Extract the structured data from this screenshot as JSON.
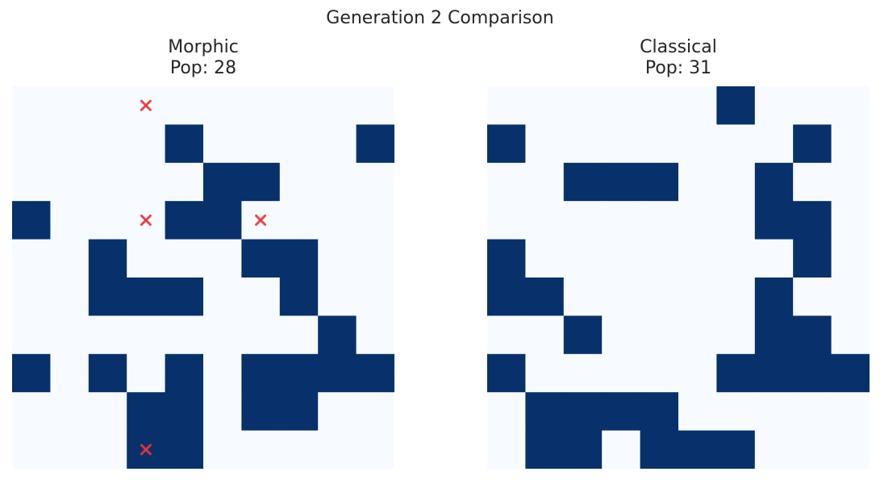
{
  "suptitle": "Generation 2 Comparison",
  "colors": {
    "alive": "#08306b",
    "dead": "#f7fbff",
    "marker": "#e8343c"
  },
  "chart_data": [
    {
      "type": "heatmap",
      "name": "Morphic",
      "title_line1": "Morphic",
      "title_line2": "Pop: 28",
      "grid": [
        [
          0,
          0,
          0,
          0,
          0,
          0,
          0,
          0,
          0,
          0
        ],
        [
          0,
          0,
          0,
          0,
          1,
          0,
          0,
          0,
          0,
          1
        ],
        [
          0,
          0,
          0,
          0,
          0,
          1,
          1,
          0,
          0,
          0
        ],
        [
          1,
          0,
          0,
          0,
          1,
          1,
          0,
          0,
          0,
          0
        ],
        [
          0,
          0,
          1,
          0,
          0,
          0,
          1,
          1,
          0,
          0
        ],
        [
          0,
          0,
          1,
          1,
          1,
          0,
          0,
          1,
          0,
          0
        ],
        [
          0,
          0,
          0,
          0,
          0,
          0,
          0,
          0,
          1,
          0
        ],
        [
          1,
          0,
          1,
          0,
          1,
          0,
          1,
          1,
          1,
          1
        ],
        [
          0,
          0,
          0,
          1,
          1,
          0,
          1,
          1,
          0,
          0
        ],
        [
          0,
          0,
          0,
          1,
          1,
          0,
          0,
          0,
          0,
          0
        ]
      ],
      "markers": [
        [
          0,
          3
        ],
        [
          3,
          3
        ],
        [
          3,
          6
        ],
        [
          9,
          3
        ]
      ]
    },
    {
      "type": "heatmap",
      "name": "Classical",
      "title_line1": "Classical",
      "title_line2": "Pop: 31",
      "grid": [
        [
          0,
          0,
          0,
          0,
          0,
          0,
          1,
          0,
          0,
          0
        ],
        [
          1,
          0,
          0,
          0,
          0,
          0,
          0,
          0,
          1,
          0
        ],
        [
          0,
          0,
          1,
          1,
          1,
          0,
          0,
          1,
          0,
          0
        ],
        [
          0,
          0,
          0,
          0,
          0,
          0,
          0,
          1,
          1,
          0
        ],
        [
          1,
          0,
          0,
          0,
          0,
          0,
          0,
          0,
          1,
          0
        ],
        [
          1,
          1,
          0,
          0,
          0,
          0,
          0,
          1,
          0,
          0
        ],
        [
          0,
          0,
          1,
          0,
          0,
          0,
          0,
          1,
          1,
          0
        ],
        [
          1,
          0,
          0,
          0,
          0,
          0,
          1,
          1,
          1,
          1
        ],
        [
          0,
          1,
          1,
          1,
          1,
          0,
          0,
          0,
          0,
          0
        ],
        [
          0,
          1,
          1,
          0,
          1,
          1,
          1,
          0,
          0,
          0
        ]
      ],
      "markers": []
    }
  ]
}
